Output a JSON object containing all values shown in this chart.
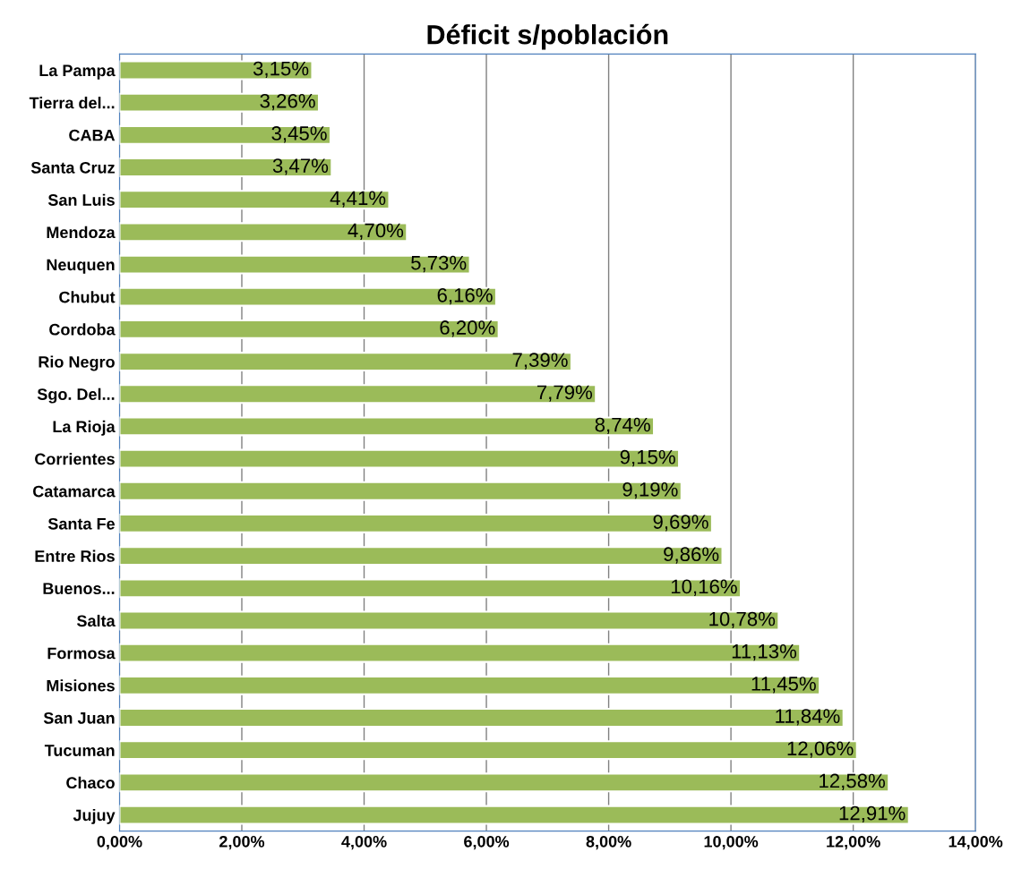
{
  "chart_data": {
    "type": "bar",
    "orientation": "horizontal",
    "title": "Déficit s/población",
    "categories": [
      "La Pampa",
      "Tierra del...",
      "CABA",
      "Santa Cruz",
      "San Luis",
      "Mendoza",
      "Neuquen",
      "Chubut",
      "Cordoba",
      "Rio Negro",
      "Sgo. Del...",
      "La Rioja",
      "Corrientes",
      "Catamarca",
      "Santa Fe",
      "Entre Rios",
      "Buenos...",
      "Salta",
      "Formosa",
      "Misiones",
      "San Juan",
      "Tucuman",
      "Chaco",
      "Jujuy"
    ],
    "values": [
      3.15,
      3.26,
      3.45,
      3.47,
      4.41,
      4.7,
      5.73,
      6.16,
      6.2,
      7.39,
      7.79,
      8.74,
      9.15,
      9.19,
      9.69,
      9.86,
      10.16,
      10.78,
      11.13,
      11.45,
      11.84,
      12.06,
      12.58,
      12.91
    ],
    "value_labels": [
      "3,15%",
      "3,26%",
      "3,45%",
      "3,47%",
      "4,41%",
      "4,70%",
      "5,73%",
      "6,16%",
      "6,20%",
      "7,39%",
      "7,79%",
      "8,74%",
      "9,15%",
      "9,19%",
      "9,69%",
      "9,86%",
      "10,16%",
      "10,78%",
      "11,13%",
      "11,45%",
      "11,84%",
      "12,06%",
      "12,58%",
      "12,91%"
    ],
    "color": "#9bbb59",
    "xlim": [
      0,
      14
    ],
    "xticks": [
      {
        "value": 0,
        "label": "0,00%"
      },
      {
        "value": 2,
        "label": "2,00%"
      },
      {
        "value": 4,
        "label": "4,00%"
      },
      {
        "value": 6,
        "label": "6,00%"
      },
      {
        "value": 8,
        "label": "8,00%"
      },
      {
        "value": 10,
        "label": "10,00%"
      },
      {
        "value": 12,
        "label": "12,00%"
      },
      {
        "value": 14,
        "label": "14,00%"
      }
    ],
    "grid": "x"
  }
}
